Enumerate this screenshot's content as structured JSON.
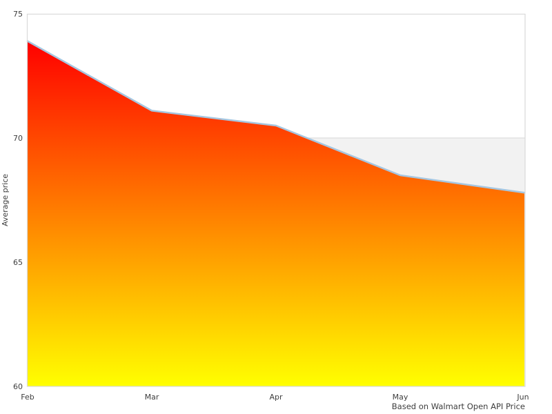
{
  "chart_data": {
    "type": "area",
    "title": "",
    "categories": [
      "Feb",
      "Mar",
      "Apr",
      "May",
      "Jun"
    ],
    "values": [
      73.9,
      71.1,
      70.5,
      68.5,
      67.8
    ],
    "series": [
      {
        "name": "Average price",
        "values": [
          73.9,
          71.1,
          70.5,
          68.5,
          67.8
        ]
      }
    ],
    "xlabel": "",
    "ylabel": "Average price",
    "ylim": [
      60,
      75
    ],
    "yticks": [
      75,
      70,
      65,
      60
    ],
    "legend": "none",
    "grid": "single horizontal gridline at 70, light band between 60 and 70 behind series",
    "caption": "Based on Walmart Open API Price",
    "band": {
      "from": 60,
      "to": 70,
      "color": "#f2f2f2"
    },
    "colors": {
      "gradient_top": "#ff0000",
      "gradient_bottom": "#ffff00",
      "line": "#a6c6e0",
      "gridline": "#e2e2e2",
      "border": "#d9d9d9",
      "text": "#3d3d3d",
      "background": "#ffffff"
    }
  }
}
